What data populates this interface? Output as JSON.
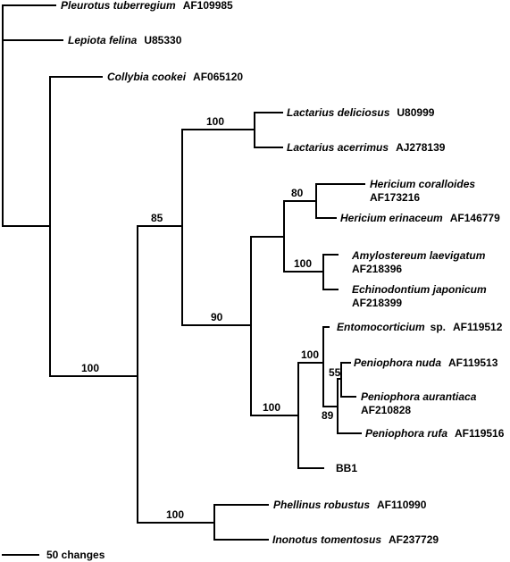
{
  "tree": {
    "taxa": [
      {
        "id": "t1",
        "name": "Pleurotus tuberregium",
        "accession": "AF109985"
      },
      {
        "id": "t2",
        "name": "Lepiota felina",
        "accession": "U85330"
      },
      {
        "id": "t3",
        "name": "Collybia cookei",
        "accession": "AF065120"
      },
      {
        "id": "t4",
        "name": "Lactarius deliciosus",
        "accession": "U80999"
      },
      {
        "id": "t5",
        "name": "Lactarius acerrimus",
        "accession": "AJ278139"
      },
      {
        "id": "t6",
        "name": "Hericium coralloides",
        "accession": "AF173216"
      },
      {
        "id": "t7",
        "name": "Hericium erinaceum",
        "accession": "AF146779"
      },
      {
        "id": "t8",
        "name": "Amylostereum laevigatum",
        "accession": "AF218396"
      },
      {
        "id": "t9",
        "name": "Echinodontium japonicum",
        "accession": "AF218399"
      },
      {
        "id": "t10",
        "name": "Entomocorticium",
        "suffix": "sp.",
        "accession": "AF119512"
      },
      {
        "id": "t11",
        "name": "Peniophora nuda",
        "accession": "AF119513"
      },
      {
        "id": "t12",
        "name": "Peniophora aurantiaca",
        "accession": "AF210828"
      },
      {
        "id": "t13",
        "name": "Peniophora rufa",
        "accession": "AF119516"
      },
      {
        "id": "t14",
        "name": "BB1",
        "accession": ""
      },
      {
        "id": "t15",
        "name": "Phellinus robustus",
        "accession": "AF110990"
      },
      {
        "id": "t16",
        "name": "Inonotus tomentosus",
        "accession": "AF237729"
      }
    ],
    "support_values": {
      "lactarius_clade": "100",
      "hericium_clade": "80",
      "amylostereum_clade": "100",
      "russuloid_clade": "85",
      "hericiaceae_group": "90",
      "main_ingroup": "100",
      "peniophora_group": "100",
      "entomocorticium_clade": "100",
      "peniophora_nuda_clade": "55",
      "peniophora_aurantiaca_rufa": "89",
      "hymenochaetales_clade": "100"
    },
    "scale_bar": {
      "label": "50 changes"
    }
  }
}
